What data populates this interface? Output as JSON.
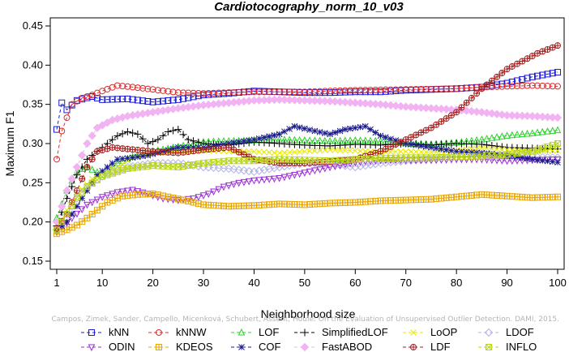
{
  "chart_data": {
    "type": "line",
    "title": "Cardiotocography_norm_10_v03",
    "xlabel": "Neighborhood size",
    "ylabel": "Maximum F1",
    "xlim": [
      1,
      100
    ],
    "ylim": [
      0.15,
      0.45
    ],
    "xticks": [
      1,
      10,
      20,
      30,
      40,
      50,
      60,
      70,
      80,
      90,
      100
    ],
    "yticks": [
      0.15,
      0.2,
      0.25,
      0.3,
      0.35,
      0.4,
      0.45
    ],
    "grid": false,
    "legend_position": "bottom",
    "watermark": "Campos, Zimek, Sander, Campello, Micenková, Schubert, Assent, Houle: On the Evaluation of Unsupervised Outlier Detection. DAMI, 2015.",
    "series": [
      {
        "name": "kNN",
        "color": "#1a1ad6",
        "marker": "square",
        "points": [
          [
            1,
            0.318
          ],
          [
            2,
            0.352
          ],
          [
            3,
            0.343
          ],
          [
            5,
            0.355
          ],
          [
            8,
            0.36
          ],
          [
            10,
            0.356
          ],
          [
            15,
            0.357
          ],
          [
            20,
            0.353
          ],
          [
            25,
            0.356
          ],
          [
            30,
            0.362
          ],
          [
            35,
            0.364
          ],
          [
            40,
            0.367
          ],
          [
            45,
            0.366
          ],
          [
            50,
            0.365
          ],
          [
            55,
            0.365
          ],
          [
            60,
            0.366
          ],
          [
            65,
            0.366
          ],
          [
            70,
            0.368
          ],
          [
            75,
            0.369
          ],
          [
            80,
            0.37
          ],
          [
            85,
            0.372
          ],
          [
            90,
            0.377
          ],
          [
            95,
            0.385
          ],
          [
            100,
            0.391
          ]
        ]
      },
      {
        "name": "kNNW",
        "color": "#e0282a",
        "marker": "circle",
        "points": [
          [
            1,
            0.28
          ],
          [
            2,
            0.316
          ],
          [
            4,
            0.35
          ],
          [
            6,
            0.358
          ],
          [
            8,
            0.362
          ],
          [
            10,
            0.367
          ],
          [
            13,
            0.374
          ],
          [
            16,
            0.372
          ],
          [
            20,
            0.369
          ],
          [
            25,
            0.365
          ],
          [
            30,
            0.364
          ],
          [
            40,
            0.366
          ],
          [
            50,
            0.366
          ],
          [
            60,
            0.368
          ],
          [
            70,
            0.369
          ],
          [
            80,
            0.37
          ],
          [
            85,
            0.372
          ],
          [
            90,
            0.373
          ],
          [
            95,
            0.374
          ],
          [
            100,
            0.373
          ]
        ]
      },
      {
        "name": "LOF",
        "color": "#2bd12b",
        "marker": "triangle-up",
        "points": [
          [
            1,
            0.205
          ],
          [
            3,
            0.24
          ],
          [
            5,
            0.265
          ],
          [
            7,
            0.27
          ],
          [
            10,
            0.26
          ],
          [
            13,
            0.275
          ],
          [
            16,
            0.283
          ],
          [
            20,
            0.29
          ],
          [
            25,
            0.296
          ],
          [
            30,
            0.302
          ],
          [
            35,
            0.303
          ],
          [
            40,
            0.304
          ],
          [
            45,
            0.305
          ],
          [
            50,
            0.304
          ],
          [
            55,
            0.303
          ],
          [
            60,
            0.304
          ],
          [
            65,
            0.303
          ],
          [
            70,
            0.3
          ],
          [
            75,
            0.299
          ],
          [
            80,
            0.301
          ],
          [
            85,
            0.305
          ],
          [
            90,
            0.31
          ],
          [
            95,
            0.313
          ],
          [
            100,
            0.317
          ]
        ]
      },
      {
        "name": "SimplifiedLOF",
        "color": "#000000",
        "marker": "plus",
        "points": [
          [
            1,
            0.195
          ],
          [
            3,
            0.23
          ],
          [
            5,
            0.26
          ],
          [
            7,
            0.28
          ],
          [
            9,
            0.29
          ],
          [
            11,
            0.3
          ],
          [
            13,
            0.31
          ],
          [
            15,
            0.315
          ],
          [
            17,
            0.312
          ],
          [
            19,
            0.3
          ],
          [
            21,
            0.305
          ],
          [
            23,
            0.315
          ],
          [
            25,
            0.318
          ],
          [
            27,
            0.305
          ],
          [
            30,
            0.3
          ],
          [
            35,
            0.298
          ],
          [
            40,
            0.302
          ],
          [
            45,
            0.3
          ],
          [
            50,
            0.298
          ],
          [
            55,
            0.297
          ],
          [
            60,
            0.299
          ],
          [
            65,
            0.298
          ],
          [
            70,
            0.3
          ],
          [
            75,
            0.298
          ],
          [
            80,
            0.3
          ],
          [
            85,
            0.299
          ],
          [
            90,
            0.295
          ],
          [
            95,
            0.294
          ],
          [
            100,
            0.293
          ]
        ]
      },
      {
        "name": "LoOP",
        "color": "#e8e800",
        "marker": "x",
        "points": [
          [
            1,
            0.19
          ],
          [
            3,
            0.215
          ],
          [
            5,
            0.235
          ],
          [
            8,
            0.255
          ],
          [
            10,
            0.262
          ],
          [
            13,
            0.27
          ],
          [
            16,
            0.282
          ],
          [
            20,
            0.288
          ],
          [
            25,
            0.289
          ],
          [
            30,
            0.292
          ],
          [
            35,
            0.29
          ],
          [
            40,
            0.29
          ],
          [
            45,
            0.288
          ],
          [
            50,
            0.29
          ],
          [
            55,
            0.292
          ],
          [
            60,
            0.291
          ],
          [
            65,
            0.289
          ],
          [
            70,
            0.29
          ],
          [
            75,
            0.289
          ],
          [
            80,
            0.291
          ],
          [
            85,
            0.294
          ],
          [
            90,
            0.292
          ],
          [
            95,
            0.29
          ],
          [
            100,
            0.291
          ]
        ]
      },
      {
        "name": "LDOF",
        "color": "#b3b3e6",
        "marker": "diamond",
        "points": [
          [
            1,
            0.19
          ],
          [
            3,
            0.21
          ],
          [
            5,
            0.23
          ],
          [
            8,
            0.25
          ],
          [
            11,
            0.262
          ],
          [
            15,
            0.27
          ],
          [
            20,
            0.275
          ],
          [
            25,
            0.275
          ],
          [
            30,
            0.27
          ],
          [
            35,
            0.268
          ],
          [
            40,
            0.264
          ],
          [
            45,
            0.27
          ],
          [
            50,
            0.275
          ],
          [
            55,
            0.274
          ],
          [
            60,
            0.27
          ],
          [
            65,
            0.275
          ],
          [
            70,
            0.278
          ],
          [
            75,
            0.28
          ],
          [
            80,
            0.282
          ],
          [
            85,
            0.285
          ],
          [
            90,
            0.284
          ],
          [
            95,
            0.283
          ],
          [
            100,
            0.282
          ]
        ]
      },
      {
        "name": "ODIN",
        "color": "#9e2ed6",
        "marker": "triangle-down",
        "points": [
          [
            1,
            0.187
          ],
          [
            4,
            0.205
          ],
          [
            7,
            0.222
          ],
          [
            10,
            0.232
          ],
          [
            13,
            0.238
          ],
          [
            16,
            0.241
          ],
          [
            19,
            0.236
          ],
          [
            22,
            0.23
          ],
          [
            25,
            0.228
          ],
          [
            28,
            0.23
          ],
          [
            31,
            0.236
          ],
          [
            34,
            0.245
          ],
          [
            37,
            0.25
          ],
          [
            40,
            0.253
          ],
          [
            45,
            0.256
          ],
          [
            50,
            0.263
          ],
          [
            55,
            0.27
          ],
          [
            60,
            0.276
          ],
          [
            65,
            0.279
          ],
          [
            70,
            0.279
          ],
          [
            75,
            0.279
          ],
          [
            80,
            0.28
          ],
          [
            85,
            0.28
          ],
          [
            90,
            0.278
          ],
          [
            95,
            0.279
          ],
          [
            100,
            0.28
          ]
        ]
      },
      {
        "name": "KDEOS",
        "color": "#e8a600",
        "marker": "square-cross",
        "points": [
          [
            1,
            0.185
          ],
          [
            3,
            0.19
          ],
          [
            5,
            0.196
          ],
          [
            7,
            0.205
          ],
          [
            9,
            0.215
          ],
          [
            11,
            0.225
          ],
          [
            14,
            0.233
          ],
          [
            17,
            0.235
          ],
          [
            20,
            0.236
          ],
          [
            23,
            0.232
          ],
          [
            26,
            0.228
          ],
          [
            30,
            0.222
          ],
          [
            35,
            0.22
          ],
          [
            40,
            0.221
          ],
          [
            45,
            0.223
          ],
          [
            50,
            0.222
          ],
          [
            55,
            0.224
          ],
          [
            60,
            0.225
          ],
          [
            65,
            0.227
          ],
          [
            70,
            0.228
          ],
          [
            75,
            0.229
          ],
          [
            80,
            0.232
          ],
          [
            85,
            0.235
          ],
          [
            90,
            0.233
          ],
          [
            95,
            0.231
          ],
          [
            100,
            0.232
          ]
        ]
      },
      {
        "name": "COF",
        "color": "#1a1a8c",
        "marker": "asterisk",
        "points": [
          [
            1,
            0.19
          ],
          [
            3,
            0.2
          ],
          [
            5,
            0.22
          ],
          [
            7,
            0.24
          ],
          [
            9,
            0.26
          ],
          [
            11,
            0.27
          ],
          [
            13,
            0.28
          ],
          [
            16,
            0.282
          ],
          [
            19,
            0.285
          ],
          [
            22,
            0.29
          ],
          [
            25,
            0.295
          ],
          [
            30,
            0.295
          ],
          [
            35,
            0.3
          ],
          [
            40,
            0.305
          ],
          [
            45,
            0.312
          ],
          [
            48,
            0.322
          ],
          [
            52,
            0.316
          ],
          [
            55,
            0.312
          ],
          [
            58,
            0.318
          ],
          [
            62,
            0.322
          ],
          [
            65,
            0.31
          ],
          [
            70,
            0.3
          ],
          [
            75,
            0.295
          ],
          [
            80,
            0.29
          ],
          [
            85,
            0.288
          ],
          [
            90,
            0.285
          ],
          [
            95,
            0.28
          ],
          [
            100,
            0.276
          ]
        ]
      },
      {
        "name": "FastABOD",
        "color": "#f2b3f2",
        "marker": "diamond-filled",
        "points": [
          [
            1,
            0.2
          ],
          [
            3,
            0.24
          ],
          [
            5,
            0.27
          ],
          [
            7,
            0.3
          ],
          [
            9,
            0.32
          ],
          [
            12,
            0.33
          ],
          [
            15,
            0.335
          ],
          [
            20,
            0.34
          ],
          [
            25,
            0.345
          ],
          [
            30,
            0.349
          ],
          [
            35,
            0.352
          ],
          [
            40,
            0.355
          ],
          [
            45,
            0.356
          ],
          [
            50,
            0.355
          ],
          [
            55,
            0.354
          ],
          [
            60,
            0.352
          ],
          [
            65,
            0.35
          ],
          [
            70,
            0.347
          ],
          [
            75,
            0.345
          ],
          [
            80,
            0.343
          ],
          [
            85,
            0.34
          ],
          [
            90,
            0.336
          ],
          [
            95,
            0.335
          ],
          [
            100,
            0.333
          ]
        ]
      },
      {
        "name": "LDF",
        "color": "#a51c1c",
        "marker": "circle-plus",
        "points": [
          [
            1,
            0.192
          ],
          [
            3,
            0.21
          ],
          [
            5,
            0.24
          ],
          [
            7,
            0.27
          ],
          [
            9,
            0.29
          ],
          [
            12,
            0.295
          ],
          [
            15,
            0.293
          ],
          [
            20,
            0.29
          ],
          [
            25,
            0.288
          ],
          [
            30,
            0.292
          ],
          [
            35,
            0.295
          ],
          [
            40,
            0.28
          ],
          [
            45,
            0.275
          ],
          [
            50,
            0.275
          ],
          [
            55,
            0.277
          ],
          [
            60,
            0.28
          ],
          [
            65,
            0.29
          ],
          [
            70,
            0.305
          ],
          [
            75,
            0.32
          ],
          [
            80,
            0.34
          ],
          [
            85,
            0.37
          ],
          [
            88,
            0.385
          ],
          [
            90,
            0.395
          ],
          [
            93,
            0.405
          ],
          [
            96,
            0.415
          ],
          [
            100,
            0.425
          ]
        ]
      },
      {
        "name": "INFLO",
        "color": "#b8d61a",
        "marker": "square-x",
        "points": [
          [
            1,
            0.19
          ],
          [
            3,
            0.21
          ],
          [
            5,
            0.232
          ],
          [
            7,
            0.245
          ],
          [
            10,
            0.258
          ],
          [
            15,
            0.268
          ],
          [
            20,
            0.272
          ],
          [
            25,
            0.27
          ],
          [
            30,
            0.275
          ],
          [
            35,
            0.278
          ],
          [
            40,
            0.278
          ],
          [
            45,
            0.28
          ],
          [
            50,
            0.279
          ],
          [
            55,
            0.278
          ],
          [
            60,
            0.28
          ],
          [
            65,
            0.281
          ],
          [
            70,
            0.282
          ],
          [
            75,
            0.282
          ],
          [
            80,
            0.283
          ],
          [
            85,
            0.284
          ],
          [
            90,
            0.286
          ],
          [
            95,
            0.29
          ],
          [
            100,
            0.3
          ]
        ]
      }
    ]
  }
}
